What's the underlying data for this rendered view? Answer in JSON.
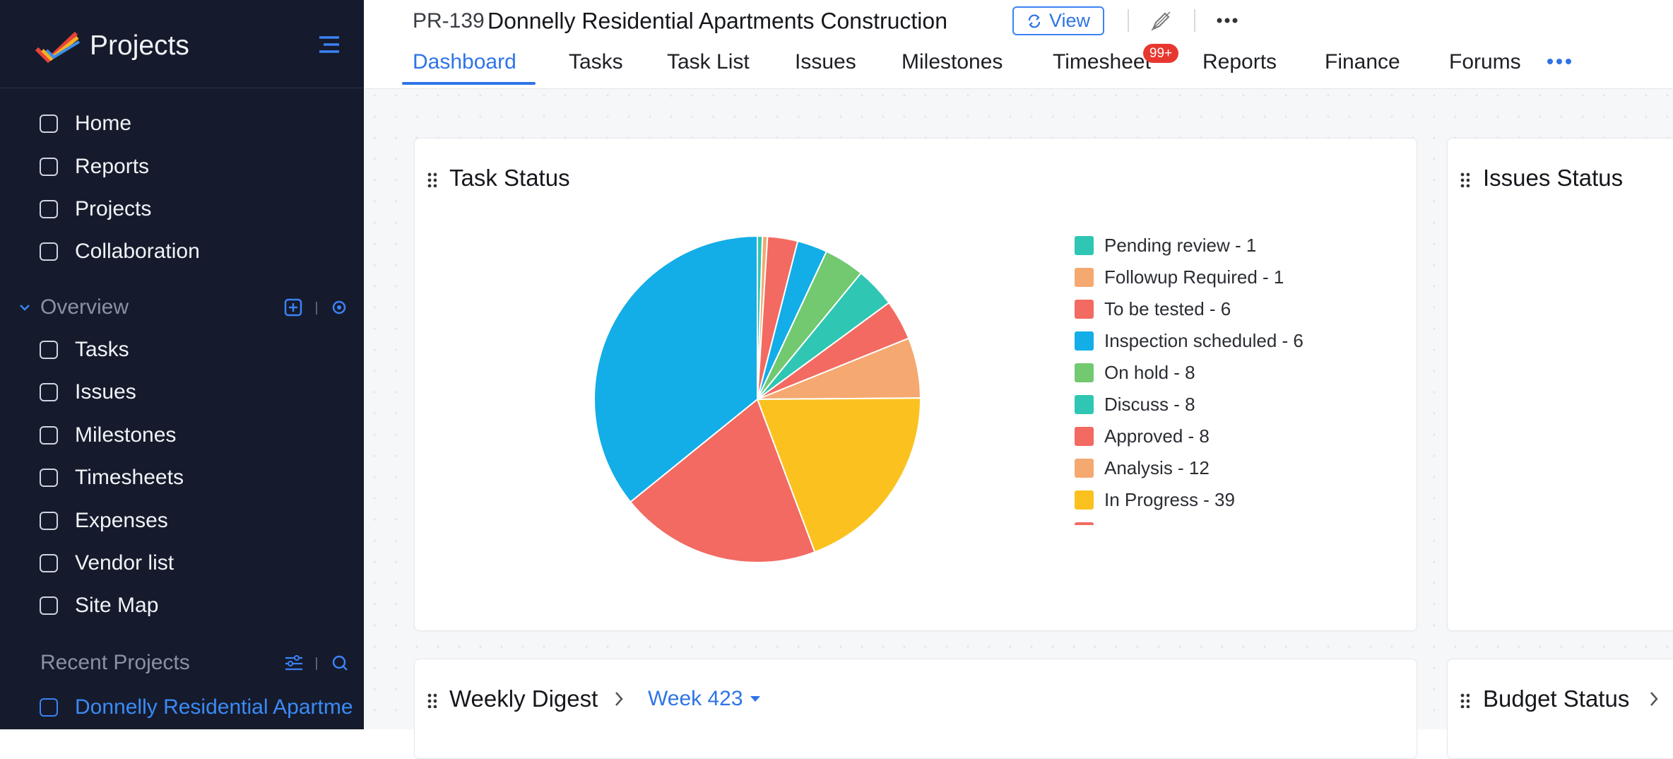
{
  "sidebar": {
    "app_title": "Projects",
    "menu": [
      "Home",
      "Reports",
      "Projects",
      "Collaboration"
    ],
    "section": "Overview",
    "items": [
      "Tasks",
      "Issues",
      "Milestones",
      "Timesheets",
      "Expenses",
      "Vendor list",
      "Site Map"
    ],
    "recent_title": "Recent Projects",
    "recent": [
      "Donnelly Residential Apartments Construction"
    ]
  },
  "header": {
    "project_id": "PR-139",
    "project_name": "Donnelly Residential Apartments Construction",
    "view_button": "View",
    "tabs": [
      "Dashboard",
      "Tasks",
      "Task List",
      "Issues",
      "Milestones",
      "Timesheet",
      "Reports",
      "Finance",
      "Forums"
    ],
    "badge": "99+"
  },
  "widgets": {
    "task_status": {
      "title": "Task Status",
      "chart": {
        "type": "pie",
        "slices": [
          {
            "label": "Pending review - 1",
            "value": 1,
            "color": "#2fc6b3"
          },
          {
            "label": "Followup Required - 1",
            "value": 1,
            "color": "#f5a870"
          },
          {
            "label": "To be tested - 6",
            "value": 6,
            "color": "#f26a61"
          },
          {
            "label": "Inspection scheduled - 6",
            "value": 6,
            "color": "#13ade7"
          },
          {
            "label": "On hold - 8",
            "value": 8,
            "color": "#72c970"
          },
          {
            "label": "Discuss - 8",
            "value": 8,
            "color": "#2fc6b3"
          },
          {
            "label": "Approved - 8",
            "value": 8,
            "color": "#f26a61"
          },
          {
            "label": "Analysis - 12",
            "value": 12,
            "color": "#f5a870"
          },
          {
            "label": "In Progress - 39",
            "value": 39,
            "color": "#fbc21f"
          },
          {
            "label": null,
            "value": 40,
            "color": "#f26a61"
          },
          {
            "label": null,
            "value": 72,
            "color": "#13ade7"
          }
        ]
      }
    },
    "issues_status": {
      "title": "Issues Status"
    },
    "weekly_digest": {
      "title": "Weekly Digest",
      "week": "Week 423"
    },
    "budget_status": {
      "title": "Budget Status"
    }
  }
}
